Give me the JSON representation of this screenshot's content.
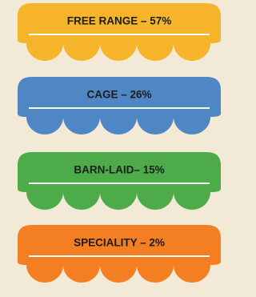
{
  "items": [
    {
      "label": "FREE RANGE – 57%",
      "color": "#f6b42a"
    },
    {
      "label": "CAGE – 26%",
      "color": "#4f86c4"
    },
    {
      "label": "BARN-LAID– 15%",
      "color": "#4dab4a"
    },
    {
      "label": "SPECIALITY – 2%",
      "color": "#f47e22"
    }
  ]
}
